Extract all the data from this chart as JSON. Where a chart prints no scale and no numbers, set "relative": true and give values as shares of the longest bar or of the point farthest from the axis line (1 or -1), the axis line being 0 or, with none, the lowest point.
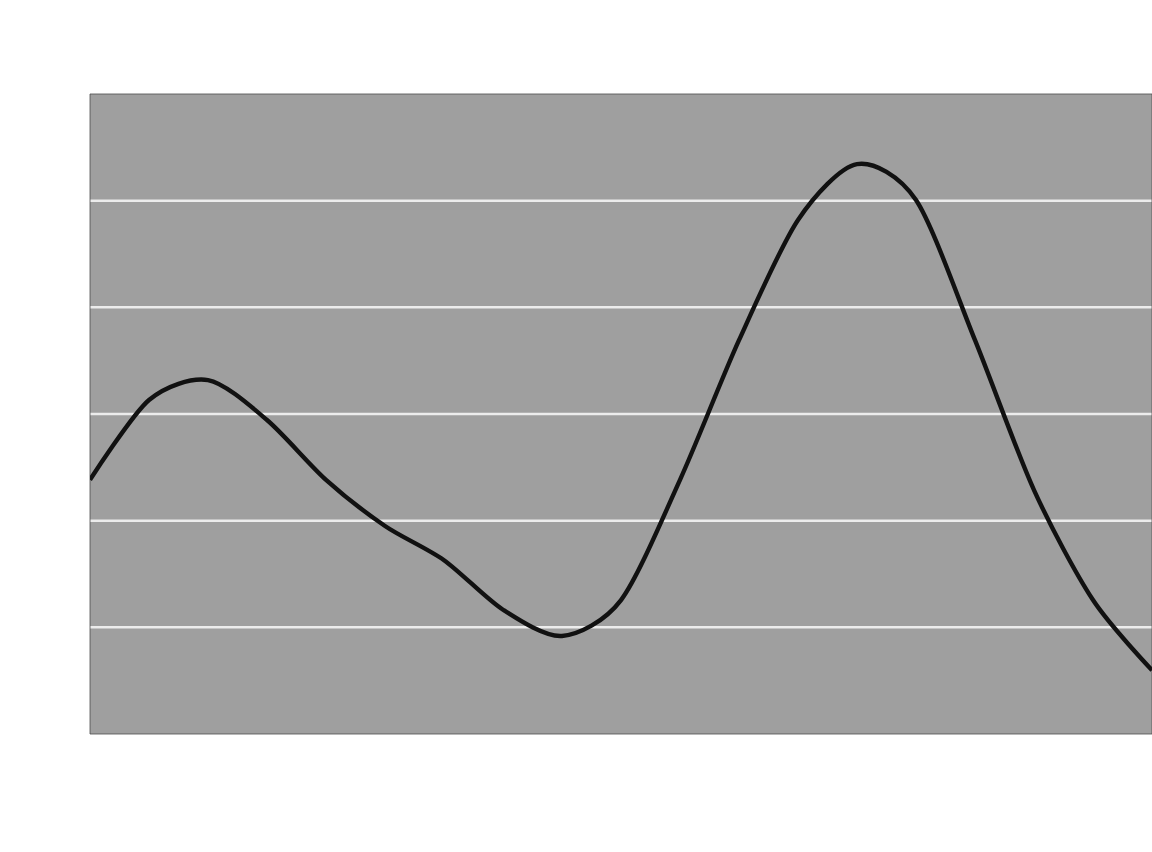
{
  "chart_data": {
    "type": "line",
    "relative": true,
    "grid": "y",
    "categories": [
      null,
      null,
      null,
      null,
      null,
      null,
      null,
      null,
      null,
      null,
      null,
      null,
      null,
      null,
      null,
      null,
      null,
      null,
      null
    ],
    "series": [
      {
        "color": "#111111",
        "values": [
          0.446,
          0.586,
          0.621,
          0.551,
          0.446,
          0.365,
          0.305,
          0.218,
          0.172,
          0.235,
          0.446,
          0.691,
          0.902,
          1,
          0.937,
          0.691,
          0.428,
          0.235,
          0.112
        ]
      }
    ]
  }
}
